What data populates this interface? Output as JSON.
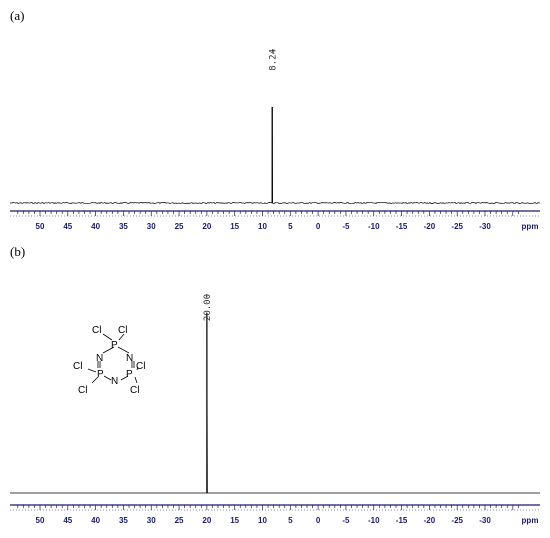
{
  "chart_data": [
    {
      "type": "line",
      "panel_label": "(a)",
      "xlabel": "ppm",
      "x_ticks": [
        "50",
        "45",
        "40",
        "35",
        "30",
        "25",
        "20",
        "15",
        "10",
        "5",
        "0",
        "-5",
        "-10",
        "-15",
        "-20",
        "-25",
        "-30"
      ],
      "xlim": [
        54,
        -36
      ],
      "x_reversed": true,
      "peaks": [
        {
          "x": 8.24,
          "label": "8.24",
          "height": 1.0
        }
      ],
      "ylim": [
        0,
        1.1
      ]
    },
    {
      "type": "line",
      "panel_label": "(b)",
      "xlabel": "ppm",
      "x_ticks": [
        "50",
        "45",
        "40",
        "35",
        "30",
        "25",
        "20",
        "15",
        "10",
        "5",
        "0",
        "-5",
        "-10",
        "-15",
        "-20",
        "-25",
        "-30"
      ],
      "xlim": [
        54,
        -36
      ],
      "x_reversed": true,
      "peaks": [
        {
          "x": 20.0,
          "label": "20.00",
          "height": 1.0
        }
      ],
      "ylim": [
        0,
        1.1
      ]
    }
  ],
  "molecule": {
    "atoms": {
      "p1": "P",
      "p2": "P",
      "p3": "P",
      "n1": "N",
      "n2": "N",
      "n3": "N",
      "cl1": "Cl",
      "cl2": "Cl",
      "cl3": "Cl",
      "cl4": "Cl",
      "cl5": "Cl",
      "cl6": "Cl"
    }
  }
}
